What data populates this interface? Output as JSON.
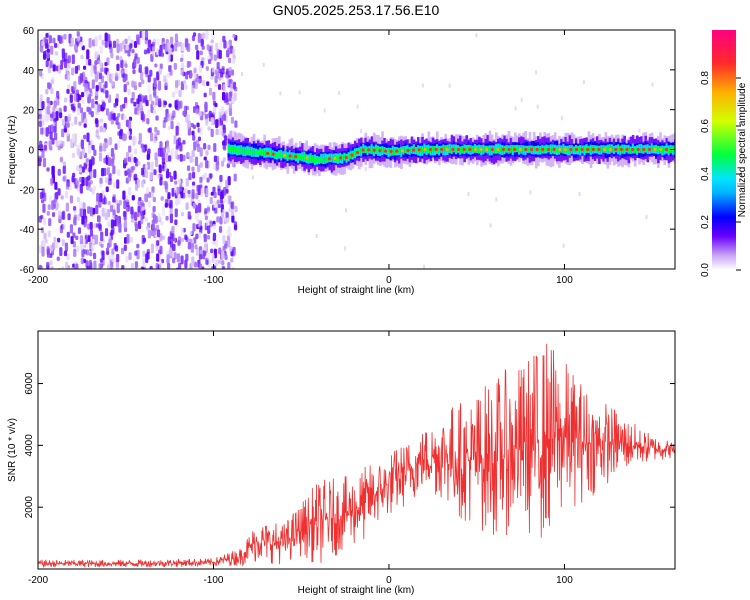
{
  "figure": {
    "title": "GN05.2025.253.17.56.E10"
  },
  "chart_data": [
    {
      "type": "heatmap",
      "title": "GN05.2025.253.17.56.E10",
      "xlabel": "Height of straight line (km)",
      "ylabel": "Frequency (Hz)",
      "xlim": [
        -200,
        163
      ],
      "ylim": [
        -60,
        60
      ],
      "x_ticks": [
        -200,
        -100,
        0,
        100
      ],
      "y_ticks": [
        -60,
        -40,
        -20,
        0,
        20,
        40,
        60
      ],
      "colorbar": {
        "label": "Normalized spectral amplitude",
        "range": [
          0,
          1
        ],
        "ticks": [
          "0.0",
          "0.2",
          "0.4",
          "0.6",
          "0.8"
        ],
        "colors": [
          "#ffffff",
          "#c9a6f5",
          "#6a00ff",
          "#0000ff",
          "#00e5ff",
          "#00ff3c",
          "#d2ff00",
          "#ffb000",
          "#ff2a2a",
          "#ff0080"
        ]
      },
      "description_points": {
        "noise_region_km": [
          -200,
          -88
        ],
        "noise_amplitude": 0.1,
        "ridge_path": [
          {
            "x": -90,
            "freq": 0
          },
          {
            "x": -60,
            "freq": -3
          },
          {
            "x": -40,
            "freq": -5
          },
          {
            "x": -25,
            "freq": -4
          },
          {
            "x": -15,
            "freq": 0
          },
          {
            "x": 0,
            "freq": -1
          },
          {
            "x": 20,
            "freq": 0
          },
          {
            "x": 60,
            "freq": 0
          },
          {
            "x": 100,
            "freq": 0
          },
          {
            "x": 163,
            "freq": 0
          }
        ]
      },
      "grid": false
    },
    {
      "type": "line",
      "xlabel": "Height of straight line (km)",
      "ylabel": "SNR (10 * v/v)",
      "xlim": [
        -200,
        163
      ],
      "ylim": [
        0,
        7700
      ],
      "x_ticks": [
        -200,
        -100,
        0,
        100
      ],
      "y_ticks": [
        2000,
        4000,
        6000
      ],
      "color": "#ef3030",
      "envelope": [
        {
          "x": -200,
          "low": 50,
          "high": 300
        },
        {
          "x": -150,
          "low": 50,
          "high": 300
        },
        {
          "x": -100,
          "low": 80,
          "high": 350
        },
        {
          "x": -85,
          "low": 100,
          "high": 700
        },
        {
          "x": -75,
          "low": 200,
          "high": 1600
        },
        {
          "x": -60,
          "low": 150,
          "high": 1500
        },
        {
          "x": -50,
          "low": 400,
          "high": 2200
        },
        {
          "x": -40,
          "low": 100,
          "high": 2900
        },
        {
          "x": -25,
          "low": 600,
          "high": 3000
        },
        {
          "x": -15,
          "low": 800,
          "high": 3300
        },
        {
          "x": -5,
          "low": 1500,
          "high": 3600
        },
        {
          "x": 5,
          "low": 1800,
          "high": 4000
        },
        {
          "x": 20,
          "low": 2500,
          "high": 4600
        },
        {
          "x": 30,
          "low": 2200,
          "high": 5300
        },
        {
          "x": 45,
          "low": 1400,
          "high": 5600
        },
        {
          "x": 60,
          "low": 1000,
          "high": 6300
        },
        {
          "x": 75,
          "low": 1200,
          "high": 6700
        },
        {
          "x": 90,
          "low": 800,
          "high": 7600
        },
        {
          "x": 100,
          "low": 1800,
          "high": 6800
        },
        {
          "x": 115,
          "low": 2300,
          "high": 5800
        },
        {
          "x": 130,
          "low": 3000,
          "high": 5200
        },
        {
          "x": 145,
          "low": 3400,
          "high": 4500
        },
        {
          "x": 163,
          "low": 3600,
          "high": 4100
        }
      ],
      "grid": false
    }
  ]
}
